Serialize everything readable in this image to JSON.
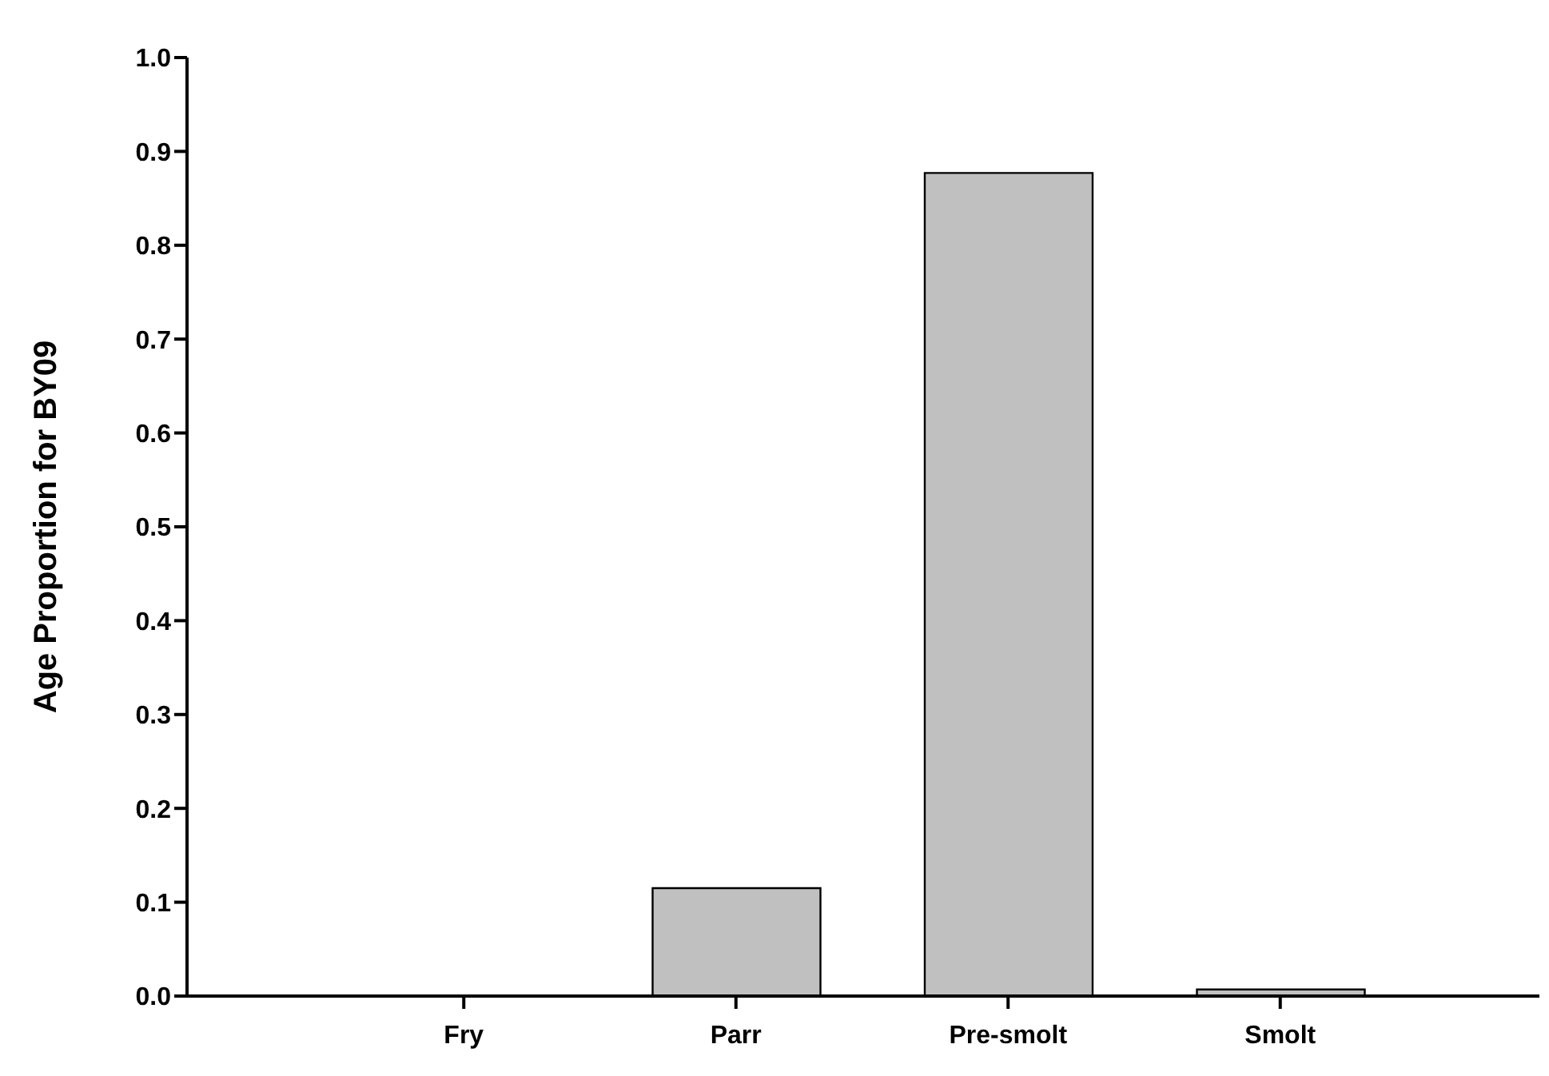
{
  "chart_data": {
    "type": "bar",
    "ylabel": "Age Proportion for BY09",
    "categories": [
      "Fry",
      "Parr",
      "Pre-smolt",
      "Smolt"
    ],
    "values": [
      0,
      0.115,
      0.877,
      0.007
    ],
    "color": "#c0c0c0",
    "ylim": [
      0,
      1
    ],
    "yticks": [
      {
        "value": 0,
        "label": "0.0"
      },
      0.1,
      0.2,
      0.3,
      0.4,
      0.5,
      0.6,
      0.7,
      0.8,
      0.9,
      {
        "value": 1,
        "label": "1.0"
      }
    ],
    "grid": false
  }
}
